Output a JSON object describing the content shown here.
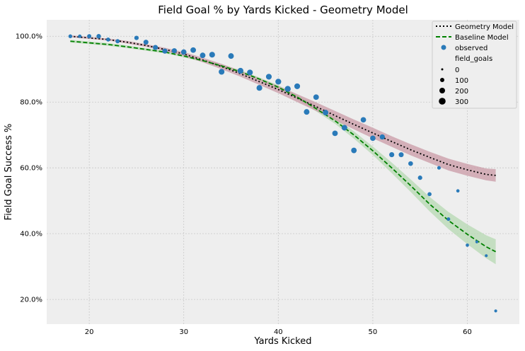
{
  "chart_data": {
    "type": "scatter",
    "title": "Field Goal % by Yards Kicked - Geometry Model",
    "xlabel": "Yards Kicked",
    "ylabel": "Field Goal Success %",
    "xlim": [
      15.5,
      65.5
    ],
    "ylim": [
      0.125,
      1.05
    ],
    "x_ticks": [
      20,
      30,
      40,
      50,
      60
    ],
    "y_ticks": [
      0.2,
      0.4,
      0.6,
      0.8,
      1.0
    ],
    "y_tick_labels": [
      "20.0%",
      "40.0%",
      "60.0%",
      "80.0%",
      "100.0%"
    ],
    "grid": true,
    "legend_position": "top-right",
    "legend": {
      "geometry_label": "Geometry Model",
      "baseline_label": "Baseline Model",
      "observed_label": "observed",
      "size_title": "field_goals",
      "size_entries": [
        "0",
        "100",
        "200",
        "300"
      ]
    },
    "colors": {
      "geometry": "#000000",
      "geometry_band": "#c99aa6",
      "baseline": "#008000",
      "baseline_band": "#b6d8b2",
      "observed": "#2a7ab9"
    },
    "geometry_model": {
      "x": [
        18,
        20,
        22,
        24,
        26,
        28,
        30,
        32,
        34,
        36,
        38,
        40,
        42,
        44,
        46,
        48,
        50,
        52,
        54,
        56,
        58,
        60,
        62,
        63
      ],
      "y": [
        1.0,
        0.995,
        0.99,
        0.982,
        0.972,
        0.96,
        0.946,
        0.928,
        0.908,
        0.886,
        0.862,
        0.838,
        0.812,
        0.786,
        0.759,
        0.732,
        0.706,
        0.68,
        0.655,
        0.632,
        0.61,
        0.594,
        0.58,
        0.577
      ],
      "band_width": [
        0.003,
        0.003,
        0.003,
        0.004,
        0.004,
        0.005,
        0.006,
        0.007,
        0.008,
        0.009,
        0.01,
        0.011,
        0.012,
        0.013,
        0.014,
        0.015,
        0.016,
        0.016,
        0.017,
        0.017,
        0.018,
        0.018,
        0.018,
        0.019
      ]
    },
    "baseline_model": {
      "x": [
        18,
        20,
        22,
        24,
        26,
        28,
        30,
        32,
        34,
        36,
        38,
        40,
        42,
        44,
        46,
        48,
        50,
        52,
        54,
        56,
        58,
        60,
        62,
        63
      ],
      "y": [
        0.985,
        0.98,
        0.975,
        0.968,
        0.96,
        0.952,
        0.94,
        0.926,
        0.91,
        0.892,
        0.87,
        0.845,
        0.815,
        0.78,
        0.743,
        0.7,
        0.652,
        0.6,
        0.546,
        0.49,
        0.44,
        0.398,
        0.36,
        0.345
      ],
      "band_width": [
        0.004,
        0.004,
        0.004,
        0.004,
        0.004,
        0.004,
        0.004,
        0.004,
        0.005,
        0.005,
        0.005,
        0.006,
        0.007,
        0.008,
        0.009,
        0.011,
        0.013,
        0.016,
        0.019,
        0.022,
        0.026,
        0.03,
        0.035,
        0.038
      ]
    },
    "observed": {
      "x": [
        18,
        19,
        20,
        21,
        22,
        23,
        25,
        26,
        27,
        28,
        29,
        30,
        31,
        32,
        33,
        34,
        35,
        36,
        37,
        38,
        39,
        40,
        41,
        42,
        43,
        44,
        45,
        46,
        47,
        48,
        49,
        50,
        51,
        52,
        53,
        54,
        55,
        56,
        57,
        58,
        59,
        60,
        61,
        62,
        63
      ],
      "y": [
        1.0,
        1.0,
        1.0,
        1.0,
        0.99,
        0.985,
        0.995,
        0.982,
        0.966,
        0.955,
        0.956,
        0.952,
        0.958,
        0.942,
        0.944,
        0.892,
        0.94,
        0.895,
        0.89,
        0.843,
        0.877,
        0.862,
        0.84,
        0.848,
        0.77,
        0.815,
        0.768,
        0.705,
        0.722,
        0.653,
        0.746,
        0.69,
        0.694,
        0.64,
        0.64,
        0.613,
        0.57,
        0.52,
        0.6,
        0.444,
        0.53,
        0.365,
        0.375,
        0.333,
        0.165
      ],
      "field_goals": [
        40,
        30,
        60,
        80,
        50,
        60,
        70,
        110,
        120,
        130,
        120,
        150,
        160,
        160,
        180,
        180,
        170,
        190,
        180,
        180,
        180,
        190,
        200,
        180,
        170,
        160,
        170,
        160,
        170,
        160,
        150,
        150,
        130,
        120,
        110,
        90,
        70,
        50,
        30,
        30,
        20,
        20,
        10,
        10,
        10
      ]
    }
  }
}
